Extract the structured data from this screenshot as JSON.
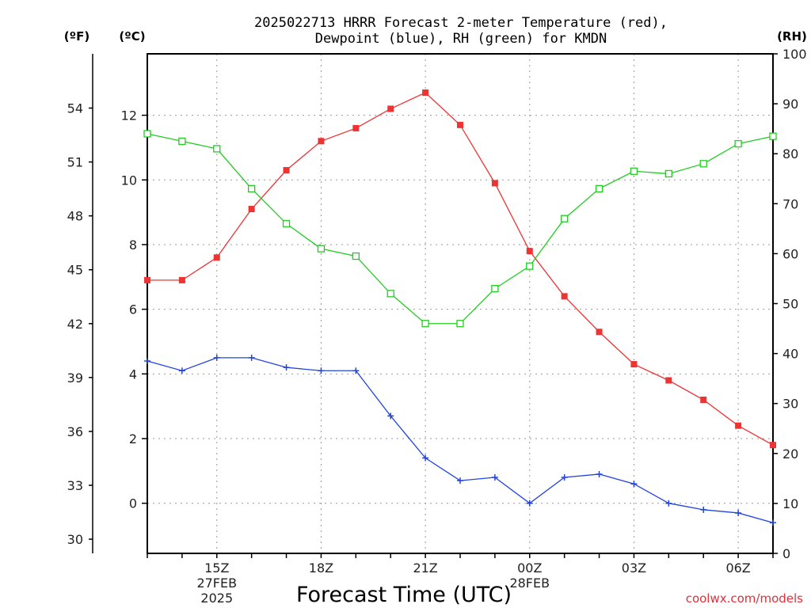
{
  "title_line1": "2025022713 HRRR Forecast 2-meter Temperature (red),",
  "title_line2": "Dewpoint (blue), RH (green) for KMDN",
  "units": {
    "f": "(ºF)",
    "c": "(ºC)",
    "rh": "(RH)"
  },
  "xaxis_title": "Forecast Time (UTC)",
  "credit": "coolwx.com/models",
  "colors": {
    "temperature": "#ee3333",
    "dewpoint": "#2244dd",
    "rh": "#22cc22",
    "grid": "#999999"
  },
  "chart_data": {
    "type": "line",
    "x": [
      "13Z",
      "14Z",
      "15Z",
      "16Z",
      "17Z",
      "18Z",
      "19Z",
      "20Z",
      "21Z",
      "22Z",
      "23Z",
      "00Z",
      "01Z",
      "02Z",
      "03Z",
      "04Z",
      "05Z",
      "06Z",
      "07Z"
    ],
    "x_tick_labels": [
      {
        "x": "15Z",
        "lines": [
          "15Z",
          "27FEB",
          "2025"
        ]
      },
      {
        "x": "18Z",
        "lines": [
          "18Z"
        ]
      },
      {
        "x": "21Z",
        "lines": [
          "21Z"
        ]
      },
      {
        "x": "00Z",
        "lines": [
          "00Z",
          "28FEB"
        ]
      },
      {
        "x": "03Z",
        "lines": [
          "03Z"
        ]
      },
      {
        "x": "06Z",
        "lines": [
          "06Z"
        ]
      }
    ],
    "left_axis_c": {
      "label": "(ºC)",
      "ylim": [
        -1.55,
        13.9
      ],
      "ticks": [
        0,
        2,
        4,
        6,
        8,
        10,
        12
      ]
    },
    "left_axis_f": {
      "label": "(ºF)",
      "ticks": [
        30,
        33,
        36,
        39,
        42,
        45,
        48,
        51,
        54
      ]
    },
    "right_axis_rh": {
      "label": "(RH)",
      "ylim": [
        0,
        100
      ],
      "ticks": [
        0,
        10,
        20,
        30,
        40,
        50,
        60,
        70,
        80,
        90,
        100
      ]
    },
    "grid": true,
    "series": [
      {
        "name": "Temperature",
        "axis": "c",
        "marker": "filled-square",
        "values": [
          6.9,
          6.9,
          7.6,
          9.1,
          10.3,
          11.2,
          11.6,
          12.2,
          12.7,
          11.7,
          9.9,
          7.8,
          6.4,
          5.3,
          4.3,
          3.8,
          3.2,
          2.4,
          1.8
        ]
      },
      {
        "name": "Dewpoint",
        "axis": "c",
        "marker": "plus",
        "values": [
          4.4,
          4.1,
          4.5,
          4.5,
          4.2,
          4.1,
          4.1,
          2.7,
          1.4,
          0.7,
          0.8,
          0.0,
          0.8,
          0.9,
          0.6,
          0.0,
          -0.2,
          -0.3,
          -0.6
        ]
      },
      {
        "name": "RH",
        "axis": "rh",
        "marker": "open-square",
        "values": [
          84,
          82.5,
          81,
          73,
          66,
          61,
          59.5,
          52,
          46,
          46,
          53,
          57.5,
          67,
          73,
          76.5,
          76,
          78,
          82,
          83.5
        ]
      }
    ]
  }
}
